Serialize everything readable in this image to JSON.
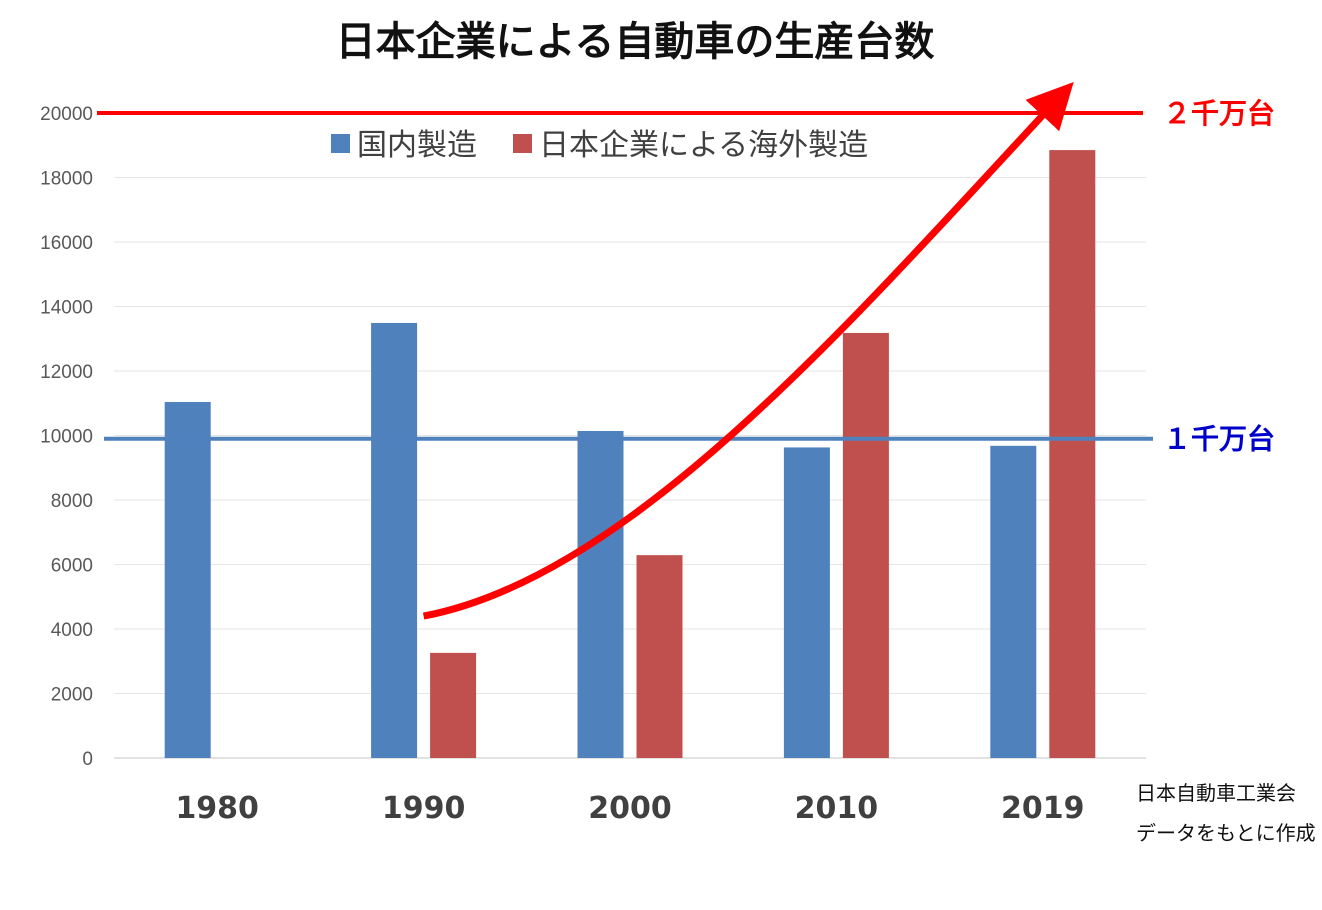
{
  "chart_data": {
    "type": "bar",
    "title": "日本企業による自動車の生産台数",
    "categories": [
      "1980",
      "1990",
      "2000",
      "2010",
      "2019"
    ],
    "series": [
      {
        "name": "国内製造",
        "color": "#4f81bd",
        "values": [
          11040,
          13490,
          10140,
          9630,
          9680
        ]
      },
      {
        "name": "日本企業による海外製造",
        "color": "#c0504d",
        "values": [
          null,
          3260,
          6290,
          13180,
          18850
        ]
      }
    ],
    "ylim": [
      0,
      20000
    ],
    "yticks": [
      0,
      2000,
      4000,
      6000,
      8000,
      10000,
      12000,
      14000,
      16000,
      18000,
      20000
    ],
    "xlabel": "",
    "ylabel": "",
    "grid": true,
    "legend_position": "top",
    "reference_lines": [
      {
        "value": 20000,
        "label": "２千万台",
        "color": "#ff0000"
      },
      {
        "value": 9900,
        "label": "１千万台",
        "color": "#0000cc",
        "line_color": "#4f81bd"
      }
    ],
    "trend_arrow": {
      "color": "#ff0000",
      "from": {
        "category": "1990",
        "value": 4400
      },
      "to": {
        "category": "2019",
        "value": 20600
      }
    },
    "source_lines": [
      "日本自動車工業会",
      "データをもとに作成"
    ]
  }
}
